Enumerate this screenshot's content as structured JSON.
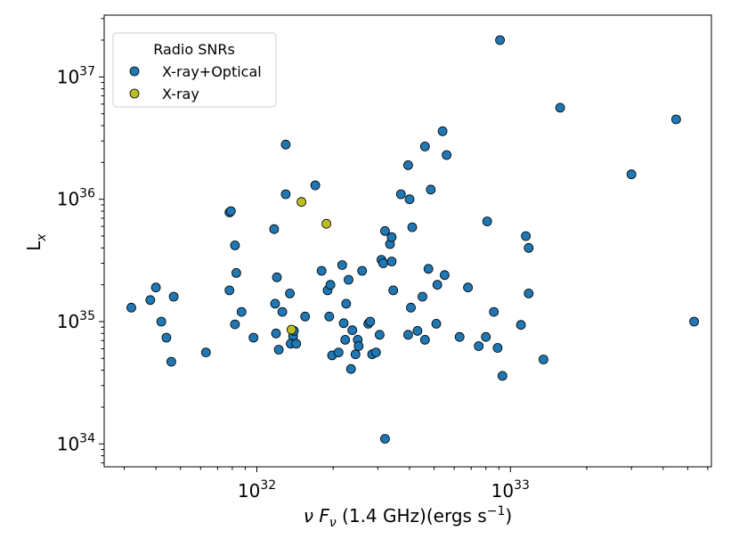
{
  "chart_data": {
    "type": "scatter",
    "xscale": "log",
    "yscale": "log",
    "xlim": [
      2.5e+31,
      6.2e+33
    ],
    "ylim": [
      6.5e+33,
      3.2e+37
    ],
    "xlabel_main": "ν F",
    "xlabel_sub": "ν",
    "xlabel_rest": " (1.4 GHz)(ergs s",
    "xlabel_sup": "−1",
    "xlabel_close": ")",
    "ylabel_main": "L",
    "ylabel_sub": "x",
    "x_ticks": [
      {
        "value": 1e+32,
        "base": "10",
        "exp": "32"
      },
      {
        "value": 1e+33,
        "base": "10",
        "exp": "33"
      }
    ],
    "y_ticks": [
      {
        "value": 1e+34,
        "base": "10",
        "exp": "34"
      },
      {
        "value": 1e+35,
        "base": "10",
        "exp": "35"
      },
      {
        "value": 1e+36,
        "base": "10",
        "exp": "36"
      },
      {
        "value": 1e+37,
        "base": "10",
        "exp": "37"
      }
    ],
    "legend": {
      "title": "Radio SNRs",
      "position": "upper-left"
    },
    "series": [
      {
        "name": "X-ray+Optical",
        "color": "#1f77b4",
        "points": [
          [
            3.2e+31,
            1.3e+35
          ],
          [
            3.8e+31,
            1.5e+35
          ],
          [
            4e+31,
            1.9e+35
          ],
          [
            4.2e+31,
            1e+35
          ],
          [
            4.4e+31,
            7.4e+34
          ],
          [
            4.6e+31,
            4.7e+34
          ],
          [
            4.7e+31,
            1.6e+35
          ],
          [
            6.3e+31,
            5.6e+34
          ],
          [
            7.8e+31,
            7.8e+35
          ],
          [
            7.9e+31,
            8e+35
          ],
          [
            7.8e+31,
            1.8e+35
          ],
          [
            8.2e+31,
            4.2e+35
          ],
          [
            8.3e+31,
            2.5e+35
          ],
          [
            8.2e+31,
            9.5e+34
          ],
          [
            8.7e+31,
            1.2e+35
          ],
          [
            9.7e+31,
            7.4e+34
          ],
          [
            1.17e+32,
            5.7e+35
          ],
          [
            1.2e+32,
            2.3e+35
          ],
          [
            1.18e+32,
            1.4e+35
          ],
          [
            1.19e+32,
            8e+34
          ],
          [
            1.22e+32,
            5.9e+34
          ],
          [
            1.26e+32,
            1.2e+35
          ],
          [
            1.3e+32,
            2.8e+36
          ],
          [
            1.3e+32,
            1.1e+36
          ],
          [
            1.35e+32,
            1.7e+35
          ],
          [
            1.39e+32,
            7.6e+34
          ],
          [
            1.4e+32,
            8.4e+34
          ],
          [
            1.36e+32,
            6.6e+34
          ],
          [
            1.43e+32,
            6.6e+34
          ],
          [
            1.55e+32,
            1.1e+35
          ],
          [
            1.7e+32,
            1.3e+36
          ],
          [
            1.8e+32,
            2.6e+35
          ],
          [
            1.9e+32,
            1.8e+35
          ],
          [
            1.95e+32,
            2e+35
          ],
          [
            1.93e+32,
            1.1e+35
          ],
          [
            1.98e+32,
            5.3e+34
          ],
          [
            2.1e+32,
            5.6e+34
          ],
          [
            2.17e+32,
            2.9e+35
          ],
          [
            2.2e+32,
            9.7e+34
          ],
          [
            2.23e+32,
            7.1e+34
          ],
          [
            2.25e+32,
            1.4e+35
          ],
          [
            2.3e+32,
            2.2e+35
          ],
          [
            2.38e+32,
            8.5e+34
          ],
          [
            2.35e+32,
            4.1e+34
          ],
          [
            2.45e+32,
            5.4e+34
          ],
          [
            2.5e+32,
            7.1e+34
          ],
          [
            2.52e+32,
            6.3e+34
          ],
          [
            2.6e+32,
            2.6e+35
          ],
          [
            2.75e+32,
            9.6e+34
          ],
          [
            2.8e+32,
            1e+35
          ],
          [
            2.85e+32,
            5.4e+34
          ],
          [
            2.95e+32,
            5.6e+34
          ],
          [
            3.05e+32,
            7.8e+34
          ],
          [
            3.1e+32,
            3.2e+35
          ],
          [
            3.15e+32,
            3e+35
          ],
          [
            3.2e+32,
            5.5e+35
          ],
          [
            3.2e+32,
            1.1e+34
          ],
          [
            3.35e+32,
            4.3e+35
          ],
          [
            3.4e+32,
            4.9e+35
          ],
          [
            3.4e+32,
            3.1e+35
          ],
          [
            3.45e+32,
            1.8e+35
          ],
          [
            3.7e+32,
            1.1e+36
          ],
          [
            3.95e+32,
            1.9e+36
          ],
          [
            4e+32,
            1e+36
          ],
          [
            4.1e+32,
            5.9e+35
          ],
          [
            4.05e+32,
            1.3e+35
          ],
          [
            3.95e+32,
            7.8e+34
          ],
          [
            4.3e+32,
            8.4e+34
          ],
          [
            4.5e+32,
            1.6e+35
          ],
          [
            4.6e+32,
            7.1e+34
          ],
          [
            4.6e+32,
            2.7e+36
          ],
          [
            4.75e+32,
            2.7e+35
          ],
          [
            4.85e+32,
            1.2e+36
          ],
          [
            5.1e+32,
            9.6e+34
          ],
          [
            5.15e+32,
            2e+35
          ],
          [
            5.4e+32,
            3.6e+36
          ],
          [
            5.5e+32,
            2.4e+35
          ],
          [
            5.6e+32,
            2.3e+36
          ],
          [
            6.3e+32,
            7.5e+34
          ],
          [
            6.8e+32,
            1.9e+35
          ],
          [
            7.5e+32,
            6.3e+34
          ],
          [
            8e+32,
            7.5e+34
          ],
          [
            8.1e+32,
            6.6e+35
          ],
          [
            8.6e+32,
            1.2e+35
          ],
          [
            8.9e+32,
            6.1e+34
          ],
          [
            9.1e+32,
            2e+37
          ],
          [
            9.3e+32,
            3.6e+34
          ],
          [
            1.1e+33,
            9.4e+34
          ],
          [
            1.15e+33,
            5e+35
          ],
          [
            1.18e+33,
            4e+35
          ],
          [
            1.18e+33,
            1.7e+35
          ],
          [
            1.35e+33,
            4.9e+34
          ],
          [
            1.57e+33,
            5.6e+36
          ],
          [
            3e+33,
            1.6e+36
          ],
          [
            4.5e+33,
            4.5e+36
          ],
          [
            5.3e+33,
            1e+35
          ]
        ]
      },
      {
        "name": "X-ray",
        "color": "#bcbd22",
        "points": [
          [
            1.5e+32,
            9.5e+35
          ],
          [
            1.88e+32,
            6.3e+35
          ],
          [
            1.37e+32,
            8.6e+34
          ]
        ]
      }
    ]
  }
}
